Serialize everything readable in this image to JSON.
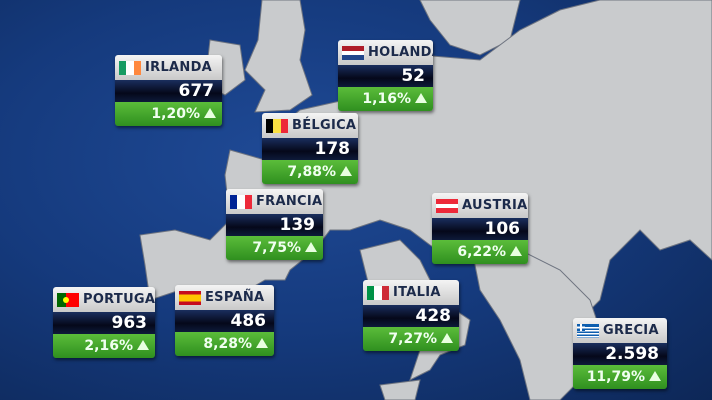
{
  "colors": {
    "sea": "#153a7d",
    "land": "#c8cacc",
    "up": "#3fa52a"
  },
  "countries": [
    {
      "name": "IRLANDA",
      "value": "677",
      "change": "1,20%",
      "trend": "up",
      "flag": "ireland"
    },
    {
      "name": "HOLANDA",
      "value": "52",
      "change": "1,16%",
      "trend": "up",
      "flag": "netherlands"
    },
    {
      "name": "BÉLGICA",
      "value": "178",
      "change": "7,88%",
      "trend": "up",
      "flag": "belgium"
    },
    {
      "name": "FRANCIA",
      "value": "139",
      "change": "7,75%",
      "trend": "up",
      "flag": "france"
    },
    {
      "name": "AUSTRIA",
      "value": "106",
      "change": "6,22%",
      "trend": "up",
      "flag": "austria"
    },
    {
      "name": "PORTUGAL",
      "value": "963",
      "change": "2,16%",
      "trend": "up",
      "flag": "portugal"
    },
    {
      "name": "ESPAÑA",
      "value": "486",
      "change": "8,28%",
      "trend": "up",
      "flag": "spain"
    },
    {
      "name": "ITALIA",
      "value": "428",
      "change": "7,27%",
      "trend": "up",
      "flag": "italy"
    },
    {
      "name": "GRECIA",
      "value": "2.598",
      "change": "11,79%",
      "trend": "up",
      "flag": "greece"
    }
  ]
}
